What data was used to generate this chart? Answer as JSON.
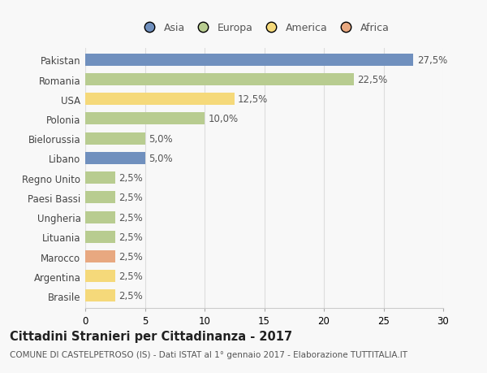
{
  "countries": [
    "Pakistan",
    "Romania",
    "USA",
    "Polonia",
    "Bielorussia",
    "Libano",
    "Regno Unito",
    "Paesi Bassi",
    "Ungheria",
    "Lituania",
    "Marocco",
    "Argentina",
    "Brasile"
  ],
  "values": [
    27.5,
    22.5,
    12.5,
    10.0,
    5.0,
    5.0,
    2.5,
    2.5,
    2.5,
    2.5,
    2.5,
    2.5,
    2.5
  ],
  "labels": [
    "27,5%",
    "22,5%",
    "12,5%",
    "10,0%",
    "5,0%",
    "5,0%",
    "2,5%",
    "2,5%",
    "2,5%",
    "2,5%",
    "2,5%",
    "2,5%",
    "2,5%"
  ],
  "colors": [
    "#7090be",
    "#b8cc90",
    "#f5d97a",
    "#b8cc90",
    "#b8cc90",
    "#7090be",
    "#b8cc90",
    "#b8cc90",
    "#b8cc90",
    "#b8cc90",
    "#e8a880",
    "#f5d97a",
    "#f5d97a"
  ],
  "legend_labels": [
    "Asia",
    "Europa",
    "America",
    "Africa"
  ],
  "legend_colors": [
    "#7090be",
    "#b8cc90",
    "#f5d97a",
    "#e8a880"
  ],
  "title": "Cittadini Stranieri per Cittadinanza - 2017",
  "subtitle": "COMUNE DI CASTELPETROSO (IS) - Dati ISTAT al 1° gennaio 2017 - Elaborazione TUTTITALIA.IT",
  "xlim": [
    0,
    30
  ],
  "xticks": [
    0,
    5,
    10,
    15,
    20,
    25,
    30
  ],
  "background_color": "#f8f8f8",
  "bar_height": 0.62,
  "label_fontsize": 8.5,
  "tick_fontsize": 8.5,
  "title_fontsize": 10.5,
  "subtitle_fontsize": 7.5,
  "grid_color": "#dddddd",
  "text_color": "#555555",
  "ytick_color": "#444444"
}
